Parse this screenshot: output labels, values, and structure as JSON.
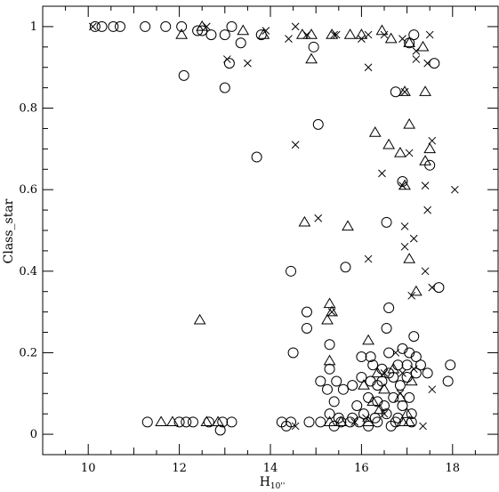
{
  "chart_data": {
    "type": "scatter",
    "xlabel": "H",
    "xlabel_subscript": "10''",
    "ylabel": "Class_star",
    "xlim": [
      9,
      19
    ],
    "ylim": [
      -0.05,
      1.05
    ],
    "x_ticks": [
      10,
      12,
      14,
      16,
      18
    ],
    "x_tick_labels": [
      "10",
      "12",
      "14",
      "16",
      "18"
    ],
    "y_ticks": [
      0,
      0.2,
      0.4,
      0.6,
      0.8,
      1
    ],
    "y_tick_labels": [
      "0",
      "0.2",
      "0.4",
      "0.6",
      "0.8",
      "1"
    ],
    "grid": false,
    "legend": "none",
    "marker_color": "#000000",
    "series": [
      {
        "marker": "circle",
        "points": [
          [
            10.15,
            1.0
          ],
          [
            10.3,
            1.0
          ],
          [
            10.55,
            1.0
          ],
          [
            10.7,
            1.0
          ],
          [
            11.25,
            1.0
          ],
          [
            11.7,
            1.0
          ],
          [
            12.05,
            1.0
          ],
          [
            13.15,
            1.0
          ],
          [
            12.4,
            0.99
          ],
          [
            12.5,
            0.99
          ],
          [
            12.7,
            0.98
          ],
          [
            13.0,
            0.98
          ],
          [
            13.8,
            0.98
          ],
          [
            13.35,
            0.96
          ],
          [
            13.1,
            0.91
          ],
          [
            14.95,
            0.95
          ],
          [
            17.05,
            0.96
          ],
          [
            17.15,
            0.98
          ],
          [
            17.6,
            0.91
          ],
          [
            12.1,
            0.88
          ],
          [
            13.0,
            0.85
          ],
          [
            16.75,
            0.84
          ],
          [
            15.05,
            0.76
          ],
          [
            13.7,
            0.68
          ],
          [
            16.9,
            0.62
          ],
          [
            17.5,
            0.66
          ],
          [
            16.55,
            0.52
          ],
          [
            15.65,
            0.41
          ],
          [
            14.45,
            0.4
          ],
          [
            17.7,
            0.36
          ],
          [
            16.6,
            0.31
          ],
          [
            14.8,
            0.3
          ],
          [
            14.8,
            0.26
          ],
          [
            16.55,
            0.26
          ],
          [
            17.15,
            0.24
          ],
          [
            15.3,
            0.22
          ],
          [
            14.5,
            0.2
          ],
          [
            16.6,
            0.2
          ],
          [
            16.0,
            0.19
          ],
          [
            16.2,
            0.19
          ],
          [
            16.9,
            0.21
          ],
          [
            17.05,
            0.2
          ],
          [
            17.2,
            0.19
          ],
          [
            15.3,
            0.16
          ],
          [
            16.25,
            0.17
          ],
          [
            16.45,
            0.16
          ],
          [
            16.8,
            0.17
          ],
          [
            17.0,
            0.17
          ],
          [
            17.3,
            0.17
          ],
          [
            17.95,
            0.17
          ],
          [
            15.1,
            0.13
          ],
          [
            15.25,
            0.11
          ],
          [
            15.45,
            0.13
          ],
          [
            15.6,
            0.11
          ],
          [
            15.8,
            0.12
          ],
          [
            16.0,
            0.14
          ],
          [
            16.2,
            0.13
          ],
          [
            16.35,
            0.12
          ],
          [
            16.45,
            0.13
          ],
          [
            16.6,
            0.15
          ],
          [
            16.7,
            0.14
          ],
          [
            16.85,
            0.12
          ],
          [
            17.0,
            0.14
          ],
          [
            17.2,
            0.15
          ],
          [
            17.45,
            0.15
          ],
          [
            17.9,
            0.13
          ],
          [
            15.4,
            0.08
          ],
          [
            15.9,
            0.07
          ],
          [
            16.15,
            0.09
          ],
          [
            16.35,
            0.08
          ],
          [
            16.5,
            0.07
          ],
          [
            16.7,
            0.09
          ],
          [
            16.9,
            0.07
          ],
          [
            17.05,
            0.09
          ],
          [
            15.3,
            0.05
          ],
          [
            15.5,
            0.04
          ],
          [
            15.8,
            0.04
          ],
          [
            16.05,
            0.05
          ],
          [
            16.3,
            0.04
          ],
          [
            16.55,
            0.05
          ],
          [
            16.8,
            0.04
          ],
          [
            17.1,
            0.05
          ],
          [
            11.3,
            0.03
          ],
          [
            12.0,
            0.03
          ],
          [
            12.15,
            0.03
          ],
          [
            12.3,
            0.03
          ],
          [
            12.65,
            0.03
          ],
          [
            12.95,
            0.03
          ],
          [
            13.15,
            0.03
          ],
          [
            14.25,
            0.03
          ],
          [
            14.45,
            0.03
          ],
          [
            14.85,
            0.03
          ],
          [
            15.1,
            0.03
          ],
          [
            15.55,
            0.03
          ],
          [
            15.75,
            0.03
          ],
          [
            15.95,
            0.03
          ],
          [
            16.35,
            0.03
          ],
          [
            16.75,
            0.03
          ],
          [
            17.1,
            0.03
          ],
          [
            12.9,
            0.01
          ],
          [
            14.35,
            0.02
          ],
          [
            15.4,
            0.02
          ],
          [
            16.15,
            0.02
          ],
          [
            16.65,
            0.02
          ]
        ]
      },
      {
        "marker": "triangle",
        "points": [
          [
            12.05,
            0.98
          ],
          [
            12.5,
            1.0
          ],
          [
            13.4,
            0.99
          ],
          [
            13.85,
            0.98
          ],
          [
            14.7,
            0.98
          ],
          [
            14.9,
            0.98
          ],
          [
            15.35,
            0.98
          ],
          [
            15.75,
            0.98
          ],
          [
            16.0,
            0.98
          ],
          [
            16.45,
            0.99
          ],
          [
            16.65,
            0.97
          ],
          [
            17.05,
            0.96
          ],
          [
            17.35,
            0.95
          ],
          [
            14.9,
            0.92
          ],
          [
            16.95,
            0.84
          ],
          [
            17.4,
            0.84
          ],
          [
            17.05,
            0.76
          ],
          [
            16.3,
            0.74
          ],
          [
            16.6,
            0.71
          ],
          [
            16.85,
            0.69
          ],
          [
            17.4,
            0.67
          ],
          [
            17.5,
            0.7
          ],
          [
            16.95,
            0.61
          ],
          [
            14.75,
            0.52
          ],
          [
            15.7,
            0.51
          ],
          [
            17.05,
            0.43
          ],
          [
            17.2,
            0.35
          ],
          [
            15.3,
            0.32
          ],
          [
            15.35,
            0.3
          ],
          [
            15.25,
            0.28
          ],
          [
            12.45,
            0.28
          ],
          [
            16.15,
            0.23
          ],
          [
            15.3,
            0.18
          ],
          [
            16.35,
            0.15
          ],
          [
            16.7,
            0.16
          ],
          [
            16.05,
            0.12
          ],
          [
            16.5,
            0.11
          ],
          [
            17.1,
            0.13
          ],
          [
            16.25,
            0.08
          ],
          [
            16.85,
            0.09
          ],
          [
            16.4,
            0.06
          ],
          [
            17.0,
            0.05
          ],
          [
            11.6,
            0.03
          ],
          [
            11.85,
            0.03
          ],
          [
            12.6,
            0.03
          ],
          [
            12.85,
            0.03
          ],
          [
            15.3,
            0.03
          ],
          [
            15.55,
            0.03
          ],
          [
            16.15,
            0.03
          ],
          [
            16.9,
            0.03
          ],
          [
            17.05,
            0.03
          ]
        ]
      },
      {
        "marker": "cross",
        "points": [
          [
            10.1,
            1.0
          ],
          [
            12.6,
            1.0
          ],
          [
            13.9,
            0.99
          ],
          [
            14.55,
            1.0
          ],
          [
            14.8,
            0.98
          ],
          [
            15.4,
            0.98
          ],
          [
            15.45,
            0.98
          ],
          [
            16.15,
            0.98
          ],
          [
            16.5,
            0.98
          ],
          [
            16.9,
            0.97
          ],
          [
            17.5,
            0.98
          ],
          [
            14.4,
            0.97
          ],
          [
            16.0,
            0.97
          ],
          [
            17.2,
            0.94
          ],
          [
            17.2,
            0.92
          ],
          [
            13.05,
            0.92
          ],
          [
            13.5,
            0.91
          ],
          [
            16.15,
            0.9
          ],
          [
            17.45,
            0.91
          ],
          [
            16.95,
            0.84
          ],
          [
            17.55,
            0.72
          ],
          [
            14.55,
            0.71
          ],
          [
            17.05,
            0.69
          ],
          [
            16.45,
            0.64
          ],
          [
            16.9,
            0.61
          ],
          [
            18.05,
            0.6
          ],
          [
            17.4,
            0.61
          ],
          [
            17.45,
            0.55
          ],
          [
            15.05,
            0.53
          ],
          [
            16.95,
            0.51
          ],
          [
            17.15,
            0.48
          ],
          [
            16.95,
            0.46
          ],
          [
            16.15,
            0.43
          ],
          [
            17.4,
            0.4
          ],
          [
            17.1,
            0.34
          ],
          [
            17.55,
            0.36
          ],
          [
            15.35,
            0.3
          ],
          [
            16.75,
            0.2
          ],
          [
            17.15,
            0.16
          ],
          [
            16.5,
            0.15
          ],
          [
            16.9,
            0.15
          ],
          [
            17.55,
            0.11
          ],
          [
            16.85,
            0.1
          ],
          [
            16.5,
            0.05
          ],
          [
            15.85,
            0.03
          ],
          [
            16.1,
            0.04
          ],
          [
            17.35,
            0.02
          ],
          [
            14.55,
            0.02
          ]
        ]
      }
    ]
  }
}
